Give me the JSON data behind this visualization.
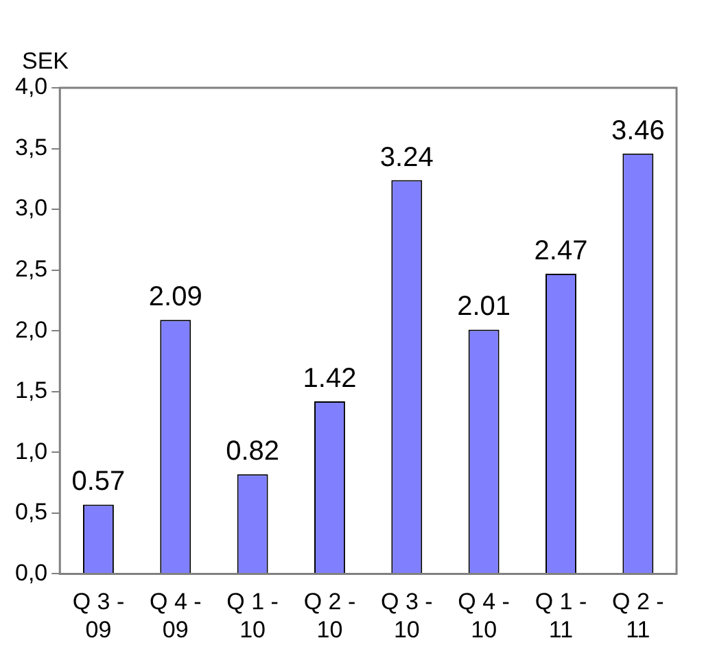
{
  "chart_data": {
    "type": "bar",
    "ylabel": "SEK",
    "categories": [
      "Q 3 - 09",
      "Q 4 - 09",
      "Q 1 - 10",
      "Q 2 - 10",
      "Q 3 - 10",
      "Q 4 - 10",
      "Q 1 - 11",
      "Q 2 - 11"
    ],
    "values": [
      0.57,
      2.09,
      0.82,
      1.42,
      3.24,
      2.01,
      2.47,
      3.46
    ],
    "color": "#8080ff",
    "ylim": [
      0,
      4
    ],
    "yticks": [
      {
        "value": 0,
        "label": "0,0"
      },
      {
        "value": 0.5,
        "label": "0,5"
      },
      {
        "value": 1,
        "label": "1,0"
      },
      {
        "value": 1.5,
        "label": "1,5"
      },
      {
        "value": 2,
        "label": "2,0"
      },
      {
        "value": 2.5,
        "label": "2,5"
      },
      {
        "value": 3,
        "label": "3,0"
      },
      {
        "value": 3.5,
        "label": "3,5"
      },
      {
        "value": 4,
        "label": "4,0"
      }
    ],
    "data_labels": true,
    "grid": false,
    "legend": false
  }
}
